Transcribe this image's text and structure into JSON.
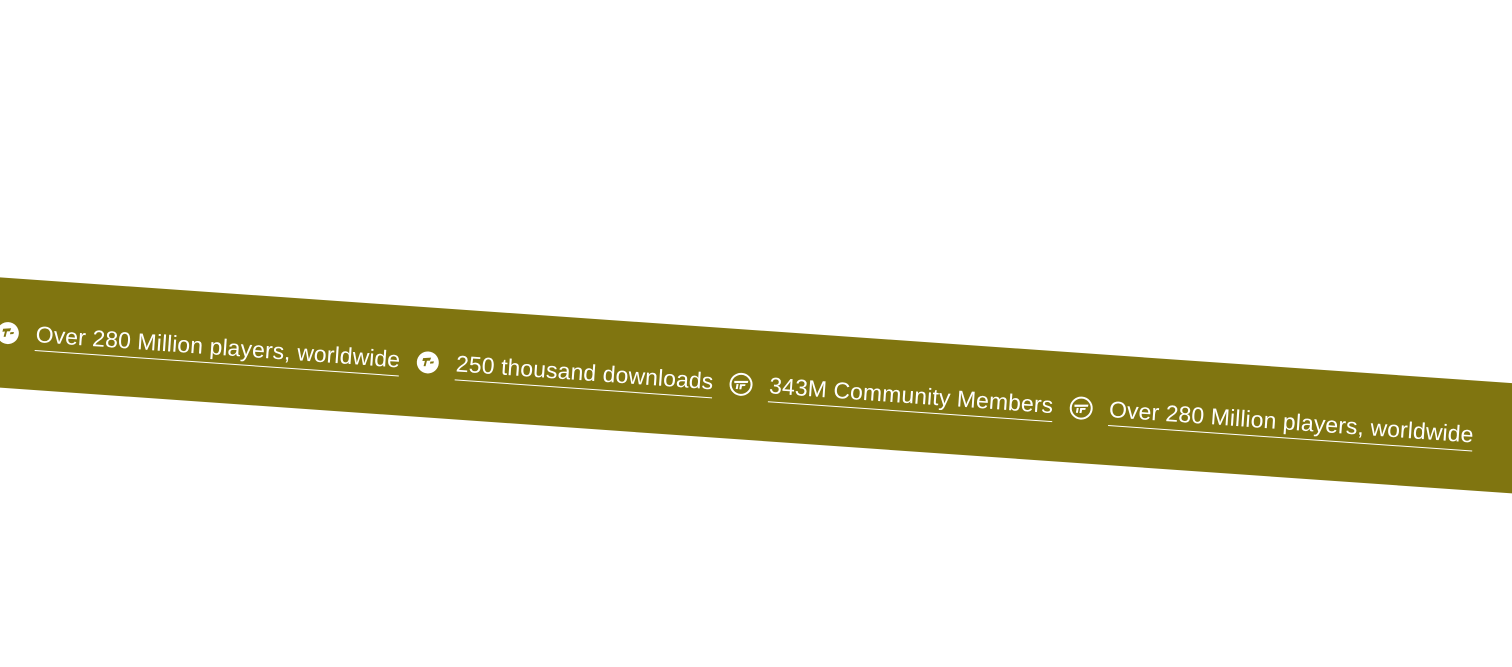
{
  "ticker": {
    "band_color": "#807510",
    "text_color": "#ffffff",
    "items": [
      {
        "icon": "badge-logo-icon",
        "label": "Over 280 Million players, worldwide"
      },
      {
        "icon": "badge-logo-icon",
        "label": "250 thousand downloads"
      },
      {
        "icon": "emblem-logo-icon",
        "label": "343M Community Members"
      },
      {
        "icon": "emblem-logo-icon",
        "label": "Over 280 Million players, worldwide"
      }
    ]
  }
}
